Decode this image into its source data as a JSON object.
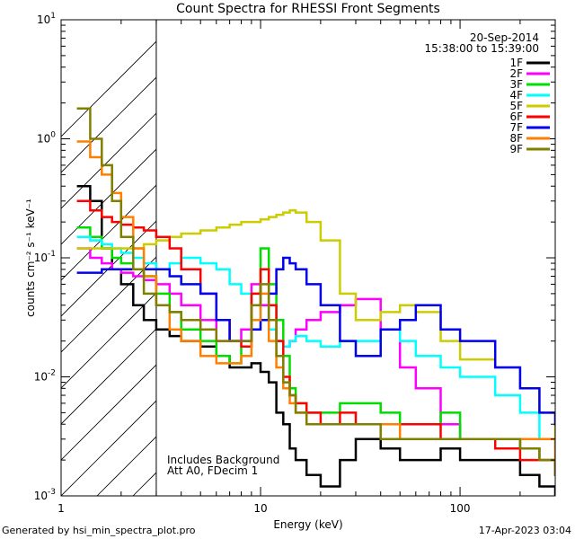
{
  "footer": {
    "generated_by": "Generated by hsi_min_spectra_plot.pro",
    "timestamp": "17-Apr-2023 03:04"
  },
  "chart_data": {
    "type": "line",
    "title": "Count Spectra for RHESSI Front Segments",
    "xlabel": "Energy (keV)",
    "ylabel": "counts cm⁻² s⁻¹ keV⁻¹",
    "x_scale": "log",
    "y_scale": "log",
    "xlim": [
      1,
      300
    ],
    "ylim": [
      0.001,
      10
    ],
    "x_ticks": [
      {
        "value": 1,
        "label": "1"
      },
      {
        "value": 10,
        "label": "10"
      },
      {
        "value": 100,
        "label": "100"
      }
    ],
    "y_ticks": [
      {
        "value": 0.001,
        "base": "10",
        "exp": "-3"
      },
      {
        "value": 0.01,
        "base": "10",
        "exp": "-2"
      },
      {
        "value": 0.1,
        "base": "10",
        "exp": "-1"
      },
      {
        "value": 1,
        "base": "10",
        "exp": "0"
      },
      {
        "value": 10,
        "base": "10",
        "exp": "1"
      }
    ],
    "date": "20-Sep-2014",
    "time_range": "15:38:00 to 15:39:00",
    "annotations": [
      "Includes Background",
      "Att A0, FDecim 1"
    ],
    "hatched_region": [
      1,
      3
    ],
    "legend_position": "top-right",
    "series": [
      {
        "name": "1F",
        "color": "#000000",
        "energy": [
          1.2,
          1.4,
          1.6,
          1.8,
          2.0,
          2.3,
          2.6,
          3.0,
          3.5,
          4.0,
          5.0,
          6.0,
          7.0,
          8.0,
          9.0,
          10.0,
          11.0,
          12.0,
          13.0,
          14.0,
          15.0,
          17.0,
          20.0,
          25.0,
          30.0,
          40.0,
          50.0,
          60.0,
          80.0,
          100.0,
          150.0,
          200.0,
          250.0,
          300.0
        ],
        "counts": [
          0.4,
          0.3,
          0.12,
          0.08,
          0.06,
          0.04,
          0.03,
          0.025,
          0.022,
          0.02,
          0.018,
          0.015,
          0.012,
          0.012,
          0.013,
          0.011,
          0.009,
          0.005,
          0.004,
          0.0025,
          0.002,
          0.0015,
          0.0012,
          0.002,
          0.003,
          0.0025,
          0.002,
          0.002,
          0.0025,
          0.002,
          0.002,
          0.0015,
          0.0012,
          0.001
        ]
      },
      {
        "name": "2F",
        "color": "#ff00ff",
        "energy": [
          1.2,
          1.4,
          1.6,
          1.8,
          2.0,
          2.3,
          2.6,
          3.0,
          3.5,
          4.0,
          5.0,
          6.0,
          7.0,
          8.0,
          9.0,
          10.0,
          11.0,
          12.0,
          13.0,
          14.0,
          15.0,
          17.0,
          20.0,
          25.0,
          30.0,
          40.0,
          50.0,
          60.0,
          80.0,
          100.0,
          150.0,
          200.0,
          250.0,
          300.0
        ],
        "counts": [
          0.12,
          0.1,
          0.09,
          0.08,
          0.075,
          0.07,
          0.065,
          0.06,
          0.05,
          0.04,
          0.03,
          0.02,
          0.02,
          0.025,
          0.06,
          0.04,
          0.025,
          0.02,
          0.018,
          0.02,
          0.025,
          0.03,
          0.035,
          0.04,
          0.045,
          0.025,
          0.012,
          0.008,
          0.004,
          0.003,
          0.003,
          0.0025,
          0.002,
          0.0015
        ]
      },
      {
        "name": "3F",
        "color": "#00dd00",
        "energy": [
          1.2,
          1.4,
          1.6,
          1.8,
          2.0,
          2.3,
          2.6,
          3.0,
          3.5,
          4.0,
          5.0,
          6.0,
          7.0,
          8.0,
          9.0,
          10.0,
          11.0,
          12.0,
          13.0,
          14.0,
          15.0,
          17.0,
          20.0,
          25.0,
          30.0,
          40.0,
          50.0,
          60.0,
          80.0,
          100.0,
          150.0,
          200.0,
          250.0,
          300.0
        ],
        "counts": [
          0.18,
          0.15,
          0.12,
          0.1,
          0.09,
          0.08,
          0.07,
          0.05,
          0.035,
          0.025,
          0.02,
          0.015,
          0.013,
          0.018,
          0.05,
          0.12,
          0.06,
          0.03,
          0.015,
          0.008,
          0.006,
          0.005,
          0.005,
          0.006,
          0.006,
          0.005,
          0.004,
          0.004,
          0.005,
          0.003,
          0.003,
          0.0025,
          0.002,
          0.0018
        ]
      },
      {
        "name": "4F",
        "color": "#00ffff",
        "energy": [
          1.2,
          1.4,
          1.6,
          1.8,
          2.0,
          2.3,
          2.6,
          3.0,
          3.5,
          4.0,
          5.0,
          6.0,
          7.0,
          8.0,
          9.0,
          10.0,
          11.0,
          12.0,
          13.0,
          14.0,
          15.0,
          17.0,
          20.0,
          25.0,
          30.0,
          40.0,
          50.0,
          60.0,
          80.0,
          100.0,
          150.0,
          200.0,
          250.0,
          300.0
        ],
        "counts": [
          0.15,
          0.14,
          0.13,
          0.12,
          0.11,
          0.1,
          0.09,
          0.08,
          0.09,
          0.1,
          0.09,
          0.08,
          0.06,
          0.05,
          0.04,
          0.03,
          0.025,
          0.02,
          0.018,
          0.02,
          0.022,
          0.02,
          0.018,
          0.02,
          0.02,
          0.025,
          0.02,
          0.015,
          0.012,
          0.01,
          0.007,
          0.005,
          0.003,
          0.0025
        ]
      },
      {
        "name": "5F",
        "color": "#cccc00",
        "energy": [
          1.2,
          1.4,
          1.6,
          1.8,
          2.0,
          2.3,
          2.6,
          3.0,
          3.5,
          4.0,
          5.0,
          6.0,
          7.0,
          8.0,
          9.0,
          10.0,
          11.0,
          12.0,
          13.0,
          14.0,
          15.0,
          17.0,
          20.0,
          25.0,
          30.0,
          40.0,
          50.0,
          60.0,
          80.0,
          100.0,
          150.0,
          200.0,
          250.0,
          300.0
        ],
        "counts": [
          0.12,
          0.12,
          0.12,
          0.12,
          0.12,
          0.12,
          0.13,
          0.14,
          0.15,
          0.16,
          0.17,
          0.18,
          0.19,
          0.2,
          0.2,
          0.21,
          0.22,
          0.23,
          0.24,
          0.25,
          0.24,
          0.2,
          0.14,
          0.05,
          0.03,
          0.035,
          0.04,
          0.035,
          0.02,
          0.014,
          0.012,
          0.008,
          0.005,
          0.003
        ]
      },
      {
        "name": "6F",
        "color": "#ff0000",
        "energy": [
          1.2,
          1.4,
          1.6,
          1.8,
          2.0,
          2.3,
          2.6,
          3.0,
          3.5,
          4.0,
          5.0,
          6.0,
          7.0,
          8.0,
          9.0,
          10.0,
          11.0,
          12.0,
          13.0,
          14.0,
          15.0,
          17.0,
          20.0,
          25.0,
          30.0,
          40.0,
          50.0,
          60.0,
          80.0,
          100.0,
          150.0,
          200.0,
          250.0,
          300.0
        ],
        "counts": [
          0.3,
          0.25,
          0.22,
          0.2,
          0.19,
          0.18,
          0.17,
          0.15,
          0.12,
          0.08,
          0.05,
          0.03,
          0.02,
          0.018,
          0.05,
          0.08,
          0.04,
          0.02,
          0.01,
          0.007,
          0.006,
          0.005,
          0.004,
          0.005,
          0.004,
          0.004,
          0.004,
          0.004,
          0.003,
          0.003,
          0.0025,
          0.002,
          0.002,
          0.0015
        ]
      },
      {
        "name": "7F",
        "color": "#0000ee",
        "energy": [
          1.2,
          1.4,
          1.6,
          1.8,
          2.0,
          2.3,
          2.6,
          3.0,
          3.5,
          4.0,
          5.0,
          6.0,
          7.0,
          8.0,
          9.0,
          10.0,
          11.0,
          12.0,
          13.0,
          14.0,
          15.0,
          17.0,
          20.0,
          25.0,
          30.0,
          40.0,
          50.0,
          60.0,
          80.0,
          100.0,
          150.0,
          200.0,
          250.0,
          300.0
        ],
        "counts": [
          0.075,
          0.075,
          0.08,
          0.08,
          0.08,
          0.08,
          0.08,
          0.08,
          0.07,
          0.06,
          0.05,
          0.03,
          0.02,
          0.02,
          0.025,
          0.03,
          0.05,
          0.08,
          0.1,
          0.09,
          0.08,
          0.06,
          0.04,
          0.02,
          0.015,
          0.025,
          0.03,
          0.04,
          0.025,
          0.02,
          0.012,
          0.008,
          0.005,
          0.004
        ]
      },
      {
        "name": "8F",
        "color": "#ff8000",
        "energy": [
          1.2,
          1.4,
          1.6,
          1.8,
          2.0,
          2.3,
          2.6,
          3.0,
          3.5,
          4.0,
          5.0,
          6.0,
          7.0,
          8.0,
          9.0,
          10.0,
          11.0,
          12.0,
          13.0,
          14.0,
          15.0,
          17.0,
          20.0,
          25.0,
          30.0,
          40.0,
          50.0,
          60.0,
          80.0,
          100.0,
          150.0,
          200.0,
          250.0,
          300.0
        ],
        "counts": [
          0.95,
          0.7,
          0.5,
          0.35,
          0.22,
          0.12,
          0.07,
          0.04,
          0.025,
          0.02,
          0.015,
          0.013,
          0.013,
          0.015,
          0.03,
          0.05,
          0.02,
          0.012,
          0.008,
          0.006,
          0.005,
          0.004,
          0.004,
          0.004,
          0.004,
          0.004,
          0.003,
          0.003,
          0.003,
          0.003,
          0.003,
          0.003,
          0.003,
          0.002
        ]
      },
      {
        "name": "9F",
        "color": "#808000",
        "energy": [
          1.2,
          1.4,
          1.6,
          1.8,
          2.0,
          2.3,
          2.6,
          3.0,
          3.5,
          4.0,
          5.0,
          6.0,
          7.0,
          8.0,
          9.0,
          10.0,
          11.0,
          12.0,
          13.0,
          14.0,
          15.0,
          17.0,
          20.0,
          25.0,
          30.0,
          40.0,
          50.0,
          60.0,
          80.0,
          100.0,
          150.0,
          200.0,
          250.0,
          300.0
        ],
        "counts": [
          1.8,
          1.0,
          0.6,
          0.3,
          0.15,
          0.08,
          0.05,
          0.04,
          0.035,
          0.03,
          0.025,
          0.02,
          0.02,
          0.02,
          0.04,
          0.06,
          0.03,
          0.015,
          0.009,
          0.007,
          0.005,
          0.004,
          0.004,
          0.004,
          0.004,
          0.003,
          0.003,
          0.003,
          0.003,
          0.003,
          0.003,
          0.0025,
          0.002,
          0.0015
        ]
      }
    ]
  }
}
